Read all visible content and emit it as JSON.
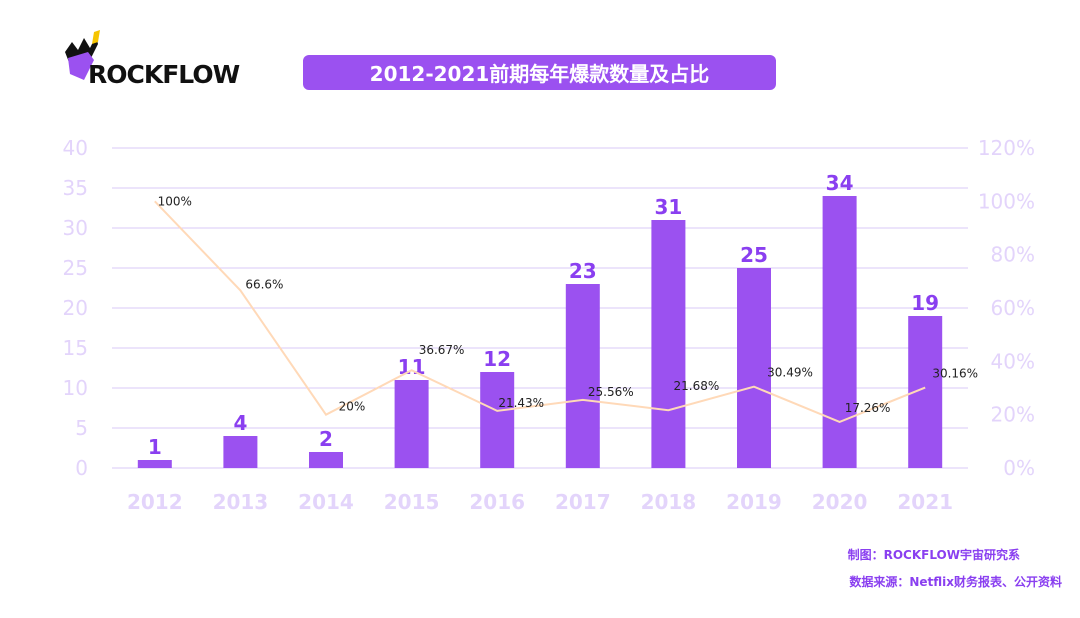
{
  "brand": {
    "name": "ROCKFLOW"
  },
  "colors": {
    "bar": "#9b51f0",
    "barLabel": "#8a3ff0",
    "line": "#ffd9b8",
    "axis": "#e3d4fb",
    "grid": "#d9c8f7",
    "pctLabel": "#222222"
  },
  "chart_data": {
    "type": "bar",
    "title": "2012-2021前期每年爆款数量及占比",
    "categories": [
      "2012",
      "2013",
      "2014",
      "2015",
      "2016",
      "2017",
      "2018",
      "2019",
      "2020",
      "2021"
    ],
    "series": [
      {
        "type": "bar",
        "axis": "left",
        "values": [
          1,
          4,
          2,
          11,
          12,
          23,
          31,
          25,
          34,
          19
        ]
      },
      {
        "type": "line",
        "axis": "right",
        "values": [
          100,
          66.6,
          20,
          36.67,
          21.43,
          25.56,
          21.68,
          30.49,
          17.26,
          30.16
        ],
        "labels": [
          "100%",
          "66.6%",
          "20%",
          "36.67%",
          "21.43%",
          "25.56%",
          "21.68%",
          "30.49%",
          "17.26%",
          "30.16%"
        ]
      }
    ],
    "y_left": {
      "min": 0,
      "max": 40,
      "ticks": [
        "0",
        "5",
        "10",
        "15",
        "20",
        "25",
        "30",
        "35",
        "40"
      ]
    },
    "y_right": {
      "min": 0,
      "max": 120,
      "ticks": [
        "0%",
        "20%",
        "40%",
        "60%",
        "80%",
        "100%",
        "120%"
      ]
    },
    "grid": true
  },
  "footer": {
    "credit": "制图：ROCKFLOW宇宙研究系",
    "source": "数据来源：Netflix财务报表、公开资料"
  }
}
